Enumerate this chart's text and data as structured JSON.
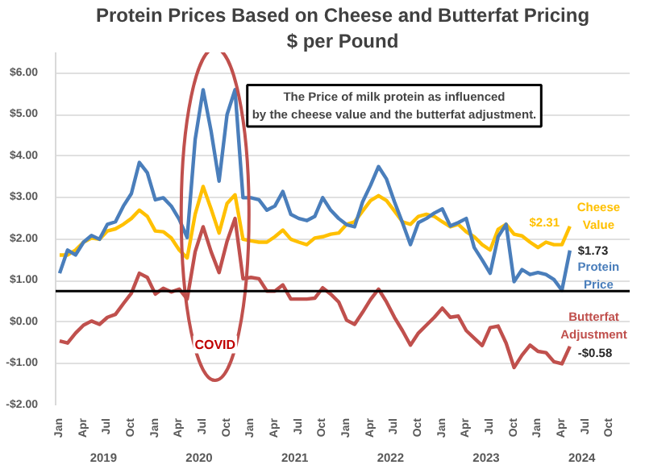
{
  "chart_data": {
    "type": "line",
    "title": "Protein Prices Based on Cheese and Butterfat Pricing",
    "subtitle": "$ per Pound",
    "categories": [
      "Jan",
      null,
      null,
      "Apr",
      null,
      null,
      "Jul",
      null,
      null,
      "Oct",
      null,
      null,
      "Jan",
      null,
      null,
      "Apr",
      null,
      null,
      "Jul",
      null,
      null,
      "Oct",
      null,
      null,
      "Jan",
      null,
      null,
      "Apr",
      null,
      null,
      "Jul",
      null,
      null,
      "Oct",
      null,
      null,
      "Jan",
      null,
      null,
      "Apr",
      null,
      null,
      "Jul",
      null,
      null,
      "Oct",
      null,
      null,
      "Jan",
      null,
      null,
      "Apr",
      null,
      null,
      "Jul",
      null,
      null,
      "Oct",
      null,
      null,
      "Jan",
      null,
      null,
      "Apr",
      null,
      null,
      "Jul",
      null,
      null,
      "Oct",
      null,
      null
    ],
    "series": [
      {
        "color": "#ffc000",
        "values": [
          1.62,
          1.62,
          1.74,
          1.93,
          2.03,
          2.0,
          2.2,
          2.25,
          2.36,
          2.5,
          2.7,
          2.55,
          2.2,
          2.18,
          2.03,
          1.74,
          1.55,
          2.6,
          3.27,
          2.73,
          2.15,
          2.86,
          3.07,
          2.0,
          1.96,
          1.93,
          1.93,
          2.06,
          2.22,
          2.0,
          1.93,
          1.87,
          2.03,
          2.06,
          2.12,
          2.15,
          2.36,
          2.42,
          2.68,
          2.93,
          3.05,
          2.93,
          2.68,
          2.42,
          2.36,
          2.55,
          2.6,
          2.55,
          2.42,
          2.3,
          2.36,
          2.18,
          2.06,
          1.87,
          1.74,
          2.24,
          2.36,
          2.12,
          2.08,
          1.93,
          1.8,
          1.93,
          1.87,
          1.87,
          2.31,
          null,
          null,
          null,
          null,
          null,
          null,
          null
        ]
      },
      {
        "color": "#4a7ebb",
        "values": [
          1.18,
          1.74,
          1.62,
          1.93,
          2.09,
          2.0,
          2.36,
          2.42,
          2.8,
          3.1,
          3.85,
          3.6,
          2.95,
          3.0,
          2.8,
          2.48,
          2.04,
          4.4,
          5.6,
          4.6,
          3.4,
          5.0,
          5.6,
          3.0,
          3.0,
          2.95,
          2.7,
          2.8,
          3.15,
          2.6,
          2.5,
          2.45,
          2.55,
          3.0,
          2.7,
          2.5,
          2.35,
          2.3,
          2.9,
          3.3,
          3.75,
          3.45,
          2.9,
          2.4,
          1.87,
          2.4,
          2.5,
          2.63,
          2.73,
          2.32,
          2.4,
          2.5,
          1.8,
          1.5,
          1.18,
          2.06,
          2.36,
          0.98,
          1.27,
          1.15,
          1.2,
          1.15,
          1.03,
          0.77,
          1.73,
          null,
          null,
          null,
          null,
          null,
          null,
          null
        ]
      },
      {
        "color": "#c0504d",
        "values": [
          -0.45,
          -0.5,
          -0.26,
          -0.07,
          0.03,
          -0.05,
          0.12,
          0.19,
          0.45,
          0.7,
          1.18,
          1.08,
          0.68,
          0.82,
          0.73,
          0.8,
          0.56,
          1.7,
          2.3,
          1.7,
          1.2,
          1.95,
          2.5,
          1.05,
          1.08,
          1.05,
          0.75,
          0.75,
          0.9,
          0.56,
          0.56,
          0.56,
          0.58,
          0.83,
          0.68,
          0.49,
          0.05,
          -0.05,
          0.24,
          0.55,
          0.8,
          0.49,
          0.12,
          -0.2,
          -0.55,
          -0.26,
          -0.07,
          0.12,
          0.34,
          0.12,
          0.15,
          -0.2,
          -0.38,
          -0.56,
          -0.13,
          -0.09,
          -0.5,
          -1.09,
          -0.79,
          -0.55,
          -0.7,
          -0.73,
          -0.95,
          -1.0,
          -0.58,
          null,
          null,
          null,
          null,
          null,
          null,
          null
        ]
      }
    ],
    "ylim": [
      -2,
      6.5
    ],
    "yticks": [
      {
        "value": -2,
        "label": "-$2.00"
      },
      {
        "value": -1,
        "label": "-$1.00"
      },
      {
        "value": 0,
        "label": "$0.00"
      },
      {
        "value": 1,
        "label": "$1.00"
      },
      {
        "value": 2,
        "label": "$2.00"
      },
      {
        "value": 3,
        "label": "$3.00"
      },
      {
        "value": 4,
        "label": "$4.00"
      },
      {
        "value": 5,
        "label": "$5.00"
      },
      {
        "value": 6,
        "label": "$6.00"
      }
    ],
    "ref_lines": [
      {
        "axis": "y",
        "value": 0.75,
        "color": "#000000"
      }
    ],
    "annotations": [
      "The Price of milk protein as influenced by the cheese value and the butterfat adjustment.",
      "COVID",
      "2019",
      "2020",
      "2021",
      "2022",
      "2023",
      "2024",
      "$2.31",
      "Cheese Value",
      "$1.73",
      "Protein Price",
      "Butterfat Adjustment",
      "-$0.58"
    ],
    "grid": "y",
    "marker": "none",
    "line_style": "solid"
  }
}
